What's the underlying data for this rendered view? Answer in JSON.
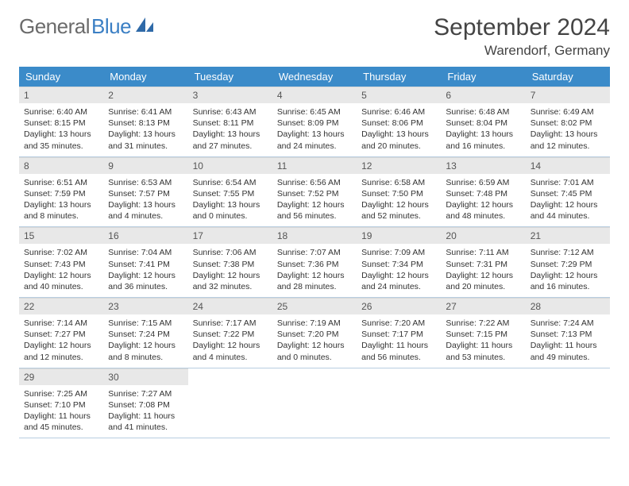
{
  "brand": {
    "line1": "General",
    "line2": "Blue"
  },
  "title": "September 2024",
  "location": "Warendorf, Germany",
  "colors": {
    "header_bg": "#3b8bc9",
    "header_text": "#ffffff",
    "daybar_bg": "#e8e8e8",
    "border": "#b8cde0",
    "brand_gray": "#6b6b6b",
    "brand_blue": "#3b7fc4"
  },
  "weekdays": [
    "Sunday",
    "Monday",
    "Tuesday",
    "Wednesday",
    "Thursday",
    "Friday",
    "Saturday"
  ],
  "weeks": [
    [
      {
        "n": "1",
        "sunrise": "6:40 AM",
        "sunset": "8:15 PM",
        "daylight_h": "13",
        "daylight_m": "35"
      },
      {
        "n": "2",
        "sunrise": "6:41 AM",
        "sunset": "8:13 PM",
        "daylight_h": "13",
        "daylight_m": "31"
      },
      {
        "n": "3",
        "sunrise": "6:43 AM",
        "sunset": "8:11 PM",
        "daylight_h": "13",
        "daylight_m": "27"
      },
      {
        "n": "4",
        "sunrise": "6:45 AM",
        "sunset": "8:09 PM",
        "daylight_h": "13",
        "daylight_m": "24"
      },
      {
        "n": "5",
        "sunrise": "6:46 AM",
        "sunset": "8:06 PM",
        "daylight_h": "13",
        "daylight_m": "20"
      },
      {
        "n": "6",
        "sunrise": "6:48 AM",
        "sunset": "8:04 PM",
        "daylight_h": "13",
        "daylight_m": "16"
      },
      {
        "n": "7",
        "sunrise": "6:49 AM",
        "sunset": "8:02 PM",
        "daylight_h": "13",
        "daylight_m": "12"
      }
    ],
    [
      {
        "n": "8",
        "sunrise": "6:51 AM",
        "sunset": "7:59 PM",
        "daylight_h": "13",
        "daylight_m": "8"
      },
      {
        "n": "9",
        "sunrise": "6:53 AM",
        "sunset": "7:57 PM",
        "daylight_h": "13",
        "daylight_m": "4"
      },
      {
        "n": "10",
        "sunrise": "6:54 AM",
        "sunset": "7:55 PM",
        "daylight_h": "13",
        "daylight_m": "0"
      },
      {
        "n": "11",
        "sunrise": "6:56 AM",
        "sunset": "7:52 PM",
        "daylight_h": "12",
        "daylight_m": "56"
      },
      {
        "n": "12",
        "sunrise": "6:58 AM",
        "sunset": "7:50 PM",
        "daylight_h": "12",
        "daylight_m": "52"
      },
      {
        "n": "13",
        "sunrise": "6:59 AM",
        "sunset": "7:48 PM",
        "daylight_h": "12",
        "daylight_m": "48"
      },
      {
        "n": "14",
        "sunrise": "7:01 AM",
        "sunset": "7:45 PM",
        "daylight_h": "12",
        "daylight_m": "44"
      }
    ],
    [
      {
        "n": "15",
        "sunrise": "7:02 AM",
        "sunset": "7:43 PM",
        "daylight_h": "12",
        "daylight_m": "40"
      },
      {
        "n": "16",
        "sunrise": "7:04 AM",
        "sunset": "7:41 PM",
        "daylight_h": "12",
        "daylight_m": "36"
      },
      {
        "n": "17",
        "sunrise": "7:06 AM",
        "sunset": "7:38 PM",
        "daylight_h": "12",
        "daylight_m": "32"
      },
      {
        "n": "18",
        "sunrise": "7:07 AM",
        "sunset": "7:36 PM",
        "daylight_h": "12",
        "daylight_m": "28"
      },
      {
        "n": "19",
        "sunrise": "7:09 AM",
        "sunset": "7:34 PM",
        "daylight_h": "12",
        "daylight_m": "24"
      },
      {
        "n": "20",
        "sunrise": "7:11 AM",
        "sunset": "7:31 PM",
        "daylight_h": "12",
        "daylight_m": "20"
      },
      {
        "n": "21",
        "sunrise": "7:12 AM",
        "sunset": "7:29 PM",
        "daylight_h": "12",
        "daylight_m": "16"
      }
    ],
    [
      {
        "n": "22",
        "sunrise": "7:14 AM",
        "sunset": "7:27 PM",
        "daylight_h": "12",
        "daylight_m": "12"
      },
      {
        "n": "23",
        "sunrise": "7:15 AM",
        "sunset": "7:24 PM",
        "daylight_h": "12",
        "daylight_m": "8"
      },
      {
        "n": "24",
        "sunrise": "7:17 AM",
        "sunset": "7:22 PM",
        "daylight_h": "12",
        "daylight_m": "4"
      },
      {
        "n": "25",
        "sunrise": "7:19 AM",
        "sunset": "7:20 PM",
        "daylight_h": "12",
        "daylight_m": "0"
      },
      {
        "n": "26",
        "sunrise": "7:20 AM",
        "sunset": "7:17 PM",
        "daylight_h": "11",
        "daylight_m": "56"
      },
      {
        "n": "27",
        "sunrise": "7:22 AM",
        "sunset": "7:15 PM",
        "daylight_h": "11",
        "daylight_m": "53"
      },
      {
        "n": "28",
        "sunrise": "7:24 AM",
        "sunset": "7:13 PM",
        "daylight_h": "11",
        "daylight_m": "49"
      }
    ],
    [
      {
        "n": "29",
        "sunrise": "7:25 AM",
        "sunset": "7:10 PM",
        "daylight_h": "11",
        "daylight_m": "45"
      },
      {
        "n": "30",
        "sunrise": "7:27 AM",
        "sunset": "7:08 PM",
        "daylight_h": "11",
        "daylight_m": "41"
      },
      null,
      null,
      null,
      null,
      null
    ]
  ],
  "labels": {
    "sunrise": "Sunrise:",
    "sunset": "Sunset:",
    "daylight_prefix": "Daylight:",
    "hours_word": "hours",
    "and_word": "and",
    "minutes_word": "minutes."
  }
}
